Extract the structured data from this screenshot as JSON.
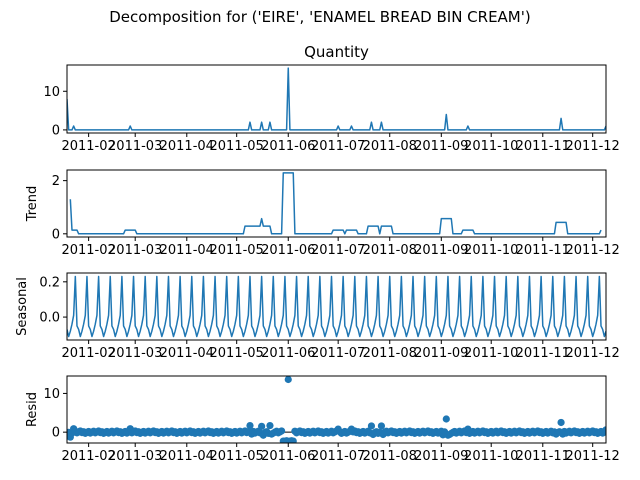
{
  "figure": {
    "suptitle": "Decomposition for ('EIRE', 'ENAMEL BREAD BIN CREAM')"
  },
  "chart_data": [
    {
      "type": "line",
      "title": "Quantity",
      "ylabel": "",
      "color": "#1f77b4",
      "xlim": [
        "2011-01-19",
        "2011-12-09"
      ],
      "ylim": [
        -0.8,
        16.8
      ],
      "yticks": [
        0,
        10
      ],
      "x_ticks": [
        "2011-02",
        "2011-03",
        "2011-04",
        "2011-05",
        "2011-06",
        "2011-07",
        "2011-08",
        "2011-09",
        "2011-10",
        "2011-11",
        "2011-12"
      ],
      "x_tick_dates": [
        "2011-02-01",
        "2011-03-01",
        "2011-04-01",
        "2011-05-01",
        "2011-06-01",
        "2011-07-01",
        "2011-08-01",
        "2011-09-01",
        "2011-10-01",
        "2011-11-01",
        "2011-12-01"
      ],
      "baseline": 0,
      "points": [
        {
          "x": "2011-01-19",
          "y": 8
        },
        {
          "x": "2011-01-20",
          "y": 0
        },
        {
          "x": "2011-01-22",
          "y": 0
        },
        {
          "x": "2011-01-23",
          "y": 1
        },
        {
          "x": "2011-01-24",
          "y": 0
        },
        {
          "x": "2011-02-25",
          "y": 0
        },
        {
          "x": "2011-02-26",
          "y": 1
        },
        {
          "x": "2011-02-27",
          "y": 0
        },
        {
          "x": "2011-05-08",
          "y": 0
        },
        {
          "x": "2011-05-09",
          "y": 2
        },
        {
          "x": "2011-05-10",
          "y": 0
        },
        {
          "x": "2011-05-15",
          "y": 0
        },
        {
          "x": "2011-05-16",
          "y": 2
        },
        {
          "x": "2011-05-17",
          "y": 0
        },
        {
          "x": "2011-05-20",
          "y": 0
        },
        {
          "x": "2011-05-21",
          "y": 2
        },
        {
          "x": "2011-05-22",
          "y": 0
        },
        {
          "x": "2011-05-31",
          "y": 0
        },
        {
          "x": "2011-06-01",
          "y": 16
        },
        {
          "x": "2011-06-02",
          "y": 0
        },
        {
          "x": "2011-06-30",
          "y": 0
        },
        {
          "x": "2011-07-01",
          "y": 1
        },
        {
          "x": "2011-07-02",
          "y": 0
        },
        {
          "x": "2011-07-08",
          "y": 0
        },
        {
          "x": "2011-07-09",
          "y": 1
        },
        {
          "x": "2011-07-10",
          "y": 0
        },
        {
          "x": "2011-07-20",
          "y": 0
        },
        {
          "x": "2011-07-21",
          "y": 2
        },
        {
          "x": "2011-07-22",
          "y": 0
        },
        {
          "x": "2011-07-26",
          "y": 0
        },
        {
          "x": "2011-07-27",
          "y": 2
        },
        {
          "x": "2011-07-28",
          "y": 0
        },
        {
          "x": "2011-09-03",
          "y": 0
        },
        {
          "x": "2011-09-04",
          "y": 4
        },
        {
          "x": "2011-09-05",
          "y": 0
        },
        {
          "x": "2011-09-16",
          "y": 0
        },
        {
          "x": "2011-09-17",
          "y": 1
        },
        {
          "x": "2011-09-18",
          "y": 0
        },
        {
          "x": "2011-11-11",
          "y": 0
        },
        {
          "x": "2011-11-12",
          "y": 3
        },
        {
          "x": "2011-11-13",
          "y": 0
        },
        {
          "x": "2011-12-08",
          "y": 0
        },
        {
          "x": "2011-12-09",
          "y": 1
        }
      ]
    },
    {
      "type": "line",
      "title": "",
      "ylabel": "Trend",
      "color": "#1f77b4",
      "xlim": [
        "2011-01-19",
        "2011-12-09"
      ],
      "ylim": [
        -0.12,
        2.4
      ],
      "yticks": [
        0,
        2
      ],
      "x_ticks": [
        "2011-02",
        "2011-03",
        "2011-04",
        "2011-05",
        "2011-06",
        "2011-07",
        "2011-08",
        "2011-09",
        "2011-10",
        "2011-11",
        "2011-12"
      ],
      "x_tick_dates": [
        "2011-02-01",
        "2011-03-01",
        "2011-04-01",
        "2011-05-01",
        "2011-06-01",
        "2011-07-01",
        "2011-08-01",
        "2011-09-01",
        "2011-10-01",
        "2011-11-01",
        "2011-12-01"
      ],
      "points": [
        {
          "x": "2011-01-21",
          "y": 1.3
        },
        {
          "x": "2011-01-22",
          "y": 0.14
        },
        {
          "x": "2011-01-25",
          "y": 0.14
        },
        {
          "x": "2011-01-26",
          "y": 0
        },
        {
          "x": "2011-02-22",
          "y": 0
        },
        {
          "x": "2011-02-23",
          "y": 0.14
        },
        {
          "x": "2011-03-01",
          "y": 0.14
        },
        {
          "x": "2011-03-02",
          "y": 0
        },
        {
          "x": "2011-05-05",
          "y": 0
        },
        {
          "x": "2011-05-06",
          "y": 0.29
        },
        {
          "x": "2011-05-15",
          "y": 0.29
        },
        {
          "x": "2011-05-16",
          "y": 0.57
        },
        {
          "x": "2011-05-17",
          "y": 0.29
        },
        {
          "x": "2011-05-21",
          "y": 0.29
        },
        {
          "x": "2011-05-22",
          "y": 0
        },
        {
          "x": "2011-05-28",
          "y": 0
        },
        {
          "x": "2011-05-29",
          "y": 2.29
        },
        {
          "x": "2011-06-04",
          "y": 2.29
        },
        {
          "x": "2011-06-05",
          "y": 0
        },
        {
          "x": "2011-06-27",
          "y": 0
        },
        {
          "x": "2011-06-28",
          "y": 0.14
        },
        {
          "x": "2011-07-04",
          "y": 0.14
        },
        {
          "x": "2011-07-05",
          "y": 0
        },
        {
          "x": "2011-07-06",
          "y": 0.14
        },
        {
          "x": "2011-07-12",
          "y": 0.14
        },
        {
          "x": "2011-07-13",
          "y": 0
        },
        {
          "x": "2011-07-18",
          "y": 0
        },
        {
          "x": "2011-07-19",
          "y": 0.29
        },
        {
          "x": "2011-07-25",
          "y": 0.29
        },
        {
          "x": "2011-07-26",
          "y": 0
        },
        {
          "x": "2011-07-27",
          "y": 0.29
        },
        {
          "x": "2011-08-02",
          "y": 0.29
        },
        {
          "x": "2011-08-03",
          "y": 0
        },
        {
          "x": "2011-08-31",
          "y": 0
        },
        {
          "x": "2011-09-01",
          "y": 0.57
        },
        {
          "x": "2011-09-07",
          "y": 0.57
        },
        {
          "x": "2011-09-08",
          "y": 0
        },
        {
          "x": "2011-09-13",
          "y": 0
        },
        {
          "x": "2011-09-14",
          "y": 0.14
        },
        {
          "x": "2011-09-20",
          "y": 0.14
        },
        {
          "x": "2011-09-21",
          "y": 0
        },
        {
          "x": "2011-11-08",
          "y": 0
        },
        {
          "x": "2011-11-09",
          "y": 0.43
        },
        {
          "x": "2011-11-15",
          "y": 0.43
        },
        {
          "x": "2011-11-16",
          "y": 0
        },
        {
          "x": "2011-12-05",
          "y": 0
        },
        {
          "x": "2011-12-06",
          "y": 0.14
        }
      ]
    },
    {
      "type": "line",
      "title": "",
      "ylabel": "Seasonal",
      "color": "#1f77b4",
      "xlim": [
        "2011-01-19",
        "2011-12-09"
      ],
      "ylim": [
        -0.13,
        0.25
      ],
      "yticks": [
        0.0,
        0.2
      ],
      "ytick_labels": [
        "0.0",
        "0.2"
      ],
      "x_ticks": [
        "2011-02",
        "2011-03",
        "2011-04",
        "2011-05",
        "2011-06",
        "2011-07",
        "2011-08",
        "2011-09",
        "2011-10",
        "2011-11",
        "2011-12"
      ],
      "x_tick_dates": [
        "2011-02-01",
        "2011-03-01",
        "2011-04-01",
        "2011-05-01",
        "2011-06-01",
        "2011-07-01",
        "2011-08-01",
        "2011-09-01",
        "2011-10-01",
        "2011-11-01",
        "2011-12-01"
      ],
      "period": 7,
      "pattern": [
        -0.07,
        -0.11,
        -0.08,
        -0.04,
        0.01,
        0.23,
        -0.05
      ],
      "start": "2011-01-19",
      "end": "2011-12-09"
    },
    {
      "type": "scatter",
      "title": "",
      "ylabel": "Resid",
      "color": "#1f77b4",
      "xlim": [
        "2011-01-19",
        "2011-12-09"
      ],
      "ylim": [
        -2.8,
        14.5
      ],
      "yticks": [
        0,
        10
      ],
      "x_ticks": [
        "2011-02",
        "2011-03",
        "2011-04",
        "2011-05",
        "2011-06",
        "2011-07",
        "2011-08",
        "2011-09",
        "2011-10",
        "2011-11",
        "2011-12"
      ],
      "x_tick_dates": [
        "2011-02-01",
        "2011-03-01",
        "2011-04-01",
        "2011-05-01",
        "2011-06-01",
        "2011-07-01",
        "2011-08-01",
        "2011-09-01",
        "2011-10-01",
        "2011-11-01",
        "2011-12-01"
      ],
      "baseline": 0,
      "outliers": [
        {
          "x": "2011-01-21",
          "y": -1.3
        },
        {
          "x": "2011-01-23",
          "y": 0.9
        },
        {
          "x": "2011-02-26",
          "y": 0.9
        },
        {
          "x": "2011-05-09",
          "y": 1.7
        },
        {
          "x": "2011-05-10",
          "y": -0.5
        },
        {
          "x": "2011-05-16",
          "y": 1.5
        },
        {
          "x": "2011-05-17",
          "y": -0.8
        },
        {
          "x": "2011-05-21",
          "y": 1.7
        },
        {
          "x": "2011-05-22",
          "y": -0.5
        },
        {
          "x": "2011-05-29",
          "y": -2.3
        },
        {
          "x": "2011-05-30",
          "y": -2.3
        },
        {
          "x": "2011-05-31",
          "y": -2.2
        },
        {
          "x": "2011-06-01",
          "y": 13.6
        },
        {
          "x": "2011-06-02",
          "y": -2.3
        },
        {
          "x": "2011-06-03",
          "y": -2.2
        },
        {
          "x": "2011-06-04",
          "y": -2.3
        },
        {
          "x": "2011-07-01",
          "y": 0.8
        },
        {
          "x": "2011-07-09",
          "y": 0.8
        },
        {
          "x": "2011-07-21",
          "y": 1.6
        },
        {
          "x": "2011-07-22",
          "y": -0.6
        },
        {
          "x": "2011-07-27",
          "y": 1.6
        },
        {
          "x": "2011-07-28",
          "y": -0.6
        },
        {
          "x": "2011-09-02",
          "y": -0.7
        },
        {
          "x": "2011-09-04",
          "y": 3.4
        },
        {
          "x": "2011-09-05",
          "y": -0.8
        },
        {
          "x": "2011-09-06",
          "y": -0.6
        },
        {
          "x": "2011-09-17",
          "y": 0.8
        },
        {
          "x": "2011-11-09",
          "y": -0.5
        },
        {
          "x": "2011-11-12",
          "y": 2.5
        },
        {
          "x": "2011-11-13",
          "y": -0.5
        },
        {
          "x": "2011-12-09",
          "y": 0.6
        }
      ]
    }
  ]
}
